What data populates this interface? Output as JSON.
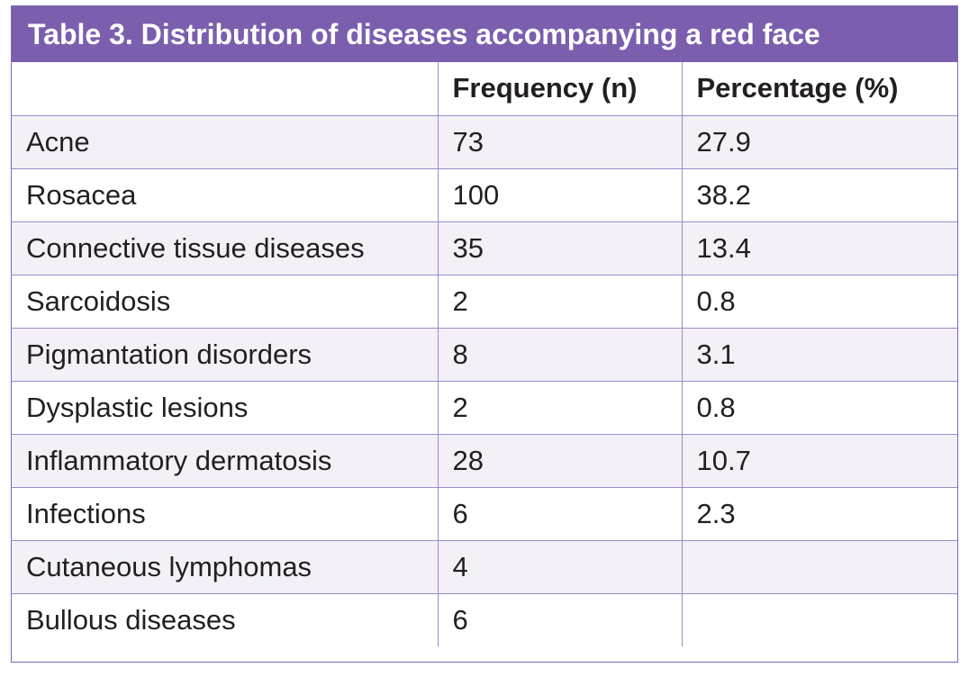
{
  "table": {
    "title": "Table 3. Distribution of diseases accompanying a red face",
    "headers": [
      "",
      "Frequency (n)",
      "Percentage (%)"
    ],
    "rows": [
      {
        "disease": "Acne",
        "frequency": "73",
        "percentage": "27.9"
      },
      {
        "disease": "Rosacea",
        "frequency": "100",
        "percentage": "38.2"
      },
      {
        "disease": "Connective tissue diseases",
        "frequency": "35",
        "percentage": "13.4"
      },
      {
        "disease": "Sarcoidosis",
        "frequency": "2",
        "percentage": "0.8"
      },
      {
        "disease": "Pigmantation disorders",
        "frequency": "8",
        "percentage": "3.1"
      },
      {
        "disease": "Dysplastic lesions",
        "frequency": "2",
        "percentage": "0.8"
      },
      {
        "disease": "Inflammatory dermatosis",
        "frequency": "28",
        "percentage": "10.7"
      },
      {
        "disease": "Infections",
        "frequency": "6",
        "percentage": "2.3"
      },
      {
        "disease": "Cutaneous lymphomas",
        "frequency": "4",
        "percentage": ""
      },
      {
        "disease": "Bullous diseases",
        "frequency": "6",
        "percentage": ""
      }
    ]
  },
  "colors": {
    "title_bg": "#7b5fae",
    "title_text": "#ffffff",
    "border": "#9a8cc8",
    "stripe": "#f3f0f8"
  }
}
